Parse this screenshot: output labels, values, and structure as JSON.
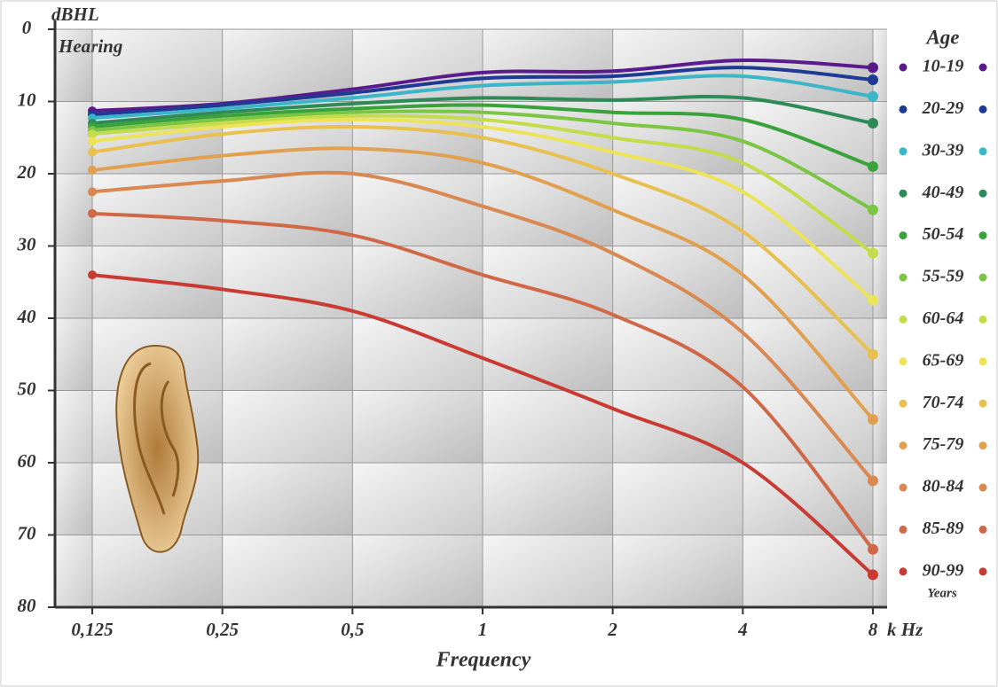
{
  "chart_data": {
    "type": "line",
    "y_label": "dBHL",
    "y_sublabel": "Hearing",
    "x_label": "Frequency",
    "x_unit": "k Hz",
    "legend_title": "Age",
    "legend_note": "Years",
    "categories": [
      "0,125",
      "0,25",
      "0,5",
      "1",
      "2",
      "4",
      "8"
    ],
    "ylim": [
      0,
      80
    ],
    "yticks": [
      0,
      10,
      20,
      30,
      40,
      50,
      60,
      70,
      80
    ],
    "y_inverted": true,
    "grid": true,
    "legend_position": "right",
    "series": [
      {
        "name": "10-19",
        "color": "#5b1a8c",
        "values": [
          11.3,
          10.3,
          8.3,
          6.0,
          5.8,
          4.3,
          5.3
        ]
      },
      {
        "name": "20-29",
        "color": "#1f3a93",
        "values": [
          11.8,
          10.5,
          8.8,
          6.8,
          6.5,
          5.3,
          7.0
        ]
      },
      {
        "name": "30-39",
        "color": "#3bb5c8",
        "values": [
          12.3,
          11,
          9.5,
          7.8,
          7.3,
          6.5,
          9.3
        ]
      },
      {
        "name": "40-49",
        "color": "#2e8b57",
        "values": [
          13,
          11.5,
          10.3,
          9.5,
          9.8,
          9.5,
          13
        ]
      },
      {
        "name": "50-54",
        "color": "#3aa23a",
        "values": [
          13.5,
          12,
          11,
          10.5,
          11.5,
          12.5,
          19
        ]
      },
      {
        "name": "55-59",
        "color": "#7cc544",
        "values": [
          14,
          12.5,
          11.5,
          11.5,
          13,
          15.5,
          25
        ]
      },
      {
        "name": "60-64",
        "color": "#c5dc4a",
        "values": [
          14.5,
          13,
          12,
          12.5,
          15,
          18.5,
          31
        ]
      },
      {
        "name": "65-69",
        "color": "#ece456",
        "values": [
          15.5,
          13.5,
          12.5,
          13.5,
          17,
          22.5,
          37.5
        ]
      },
      {
        "name": "70-74",
        "color": "#e8c050",
        "values": [
          17,
          14.5,
          13.5,
          15,
          20,
          28,
          45
        ]
      },
      {
        "name": "75-79",
        "color": "#e0a050",
        "values": [
          19.5,
          17.5,
          16.5,
          18.5,
          25,
          34,
          54
        ]
      },
      {
        "name": "80-84",
        "color": "#d88850",
        "values": [
          22.5,
          21,
          20,
          24.5,
          31,
          42,
          62.5
        ]
      },
      {
        "name": "85-89",
        "color": "#d06848",
        "values": [
          25.5,
          26.5,
          28.5,
          34,
          39.5,
          49.5,
          72
        ]
      },
      {
        "name": "90-99",
        "color": "#c83a32",
        "values": [
          34,
          36,
          39,
          45.5,
          52.5,
          60,
          75.5
        ]
      }
    ]
  }
}
